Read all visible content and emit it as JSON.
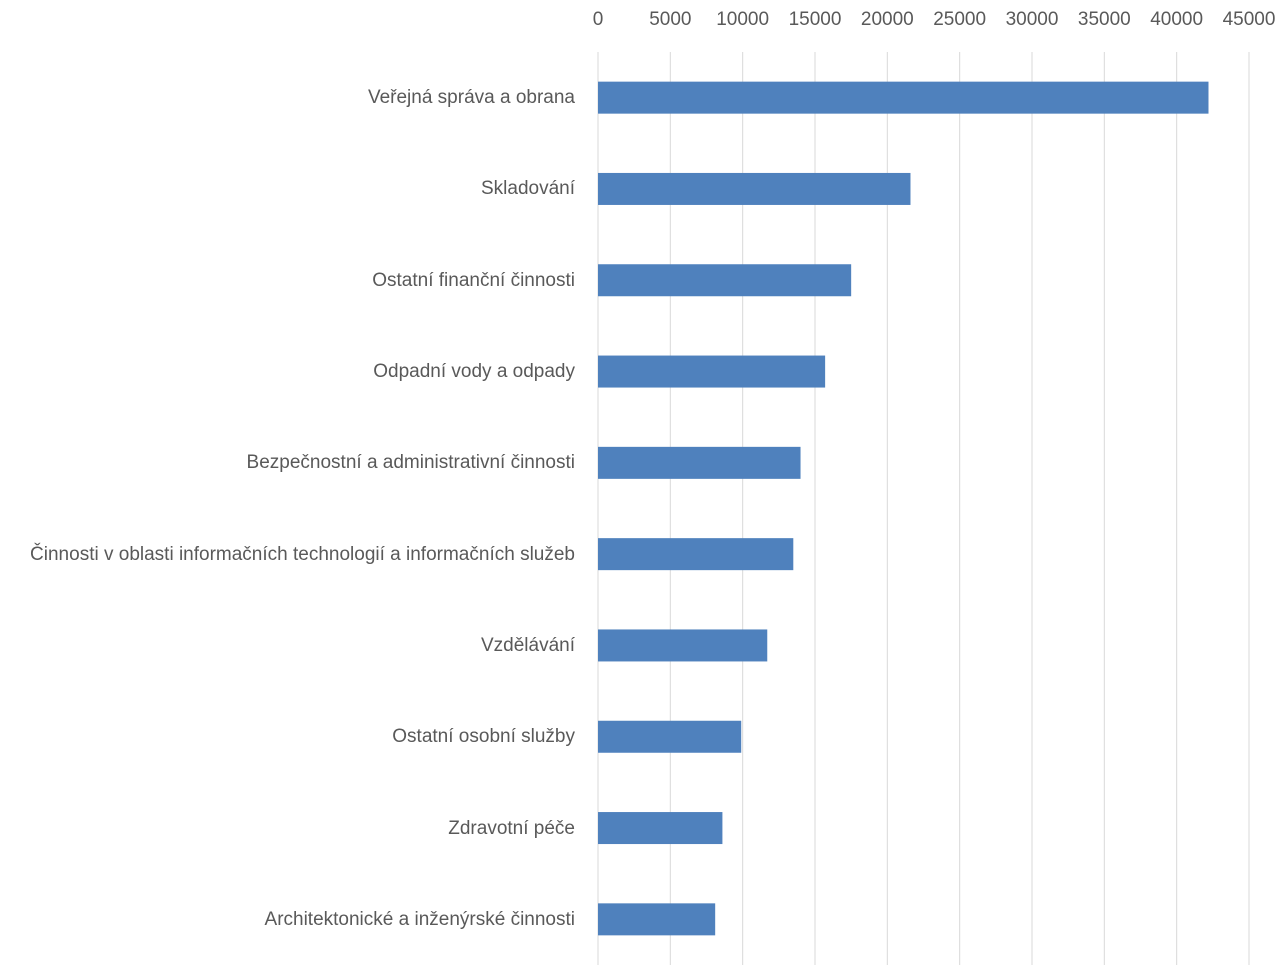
{
  "chart_data": {
    "type": "bar",
    "orientation": "horizontal",
    "categories": [
      "Veřejná správa a obrana",
      "Skladování",
      "Ostatní finanční činnosti",
      "Odpadní vody a odpady",
      "Bezpečnostní a administrativní činnosti",
      "Činnosti v oblasti informačních technologií a informačních služeb",
      "Vzdělávání",
      "Ostatní osobní služby",
      "Zdravotní péče",
      "Architektonické a inženýrské činnosti"
    ],
    "values": [
      42200,
      21600,
      17500,
      15700,
      14000,
      13500,
      11700,
      9900,
      8600,
      8100
    ],
    "color": "#4f81bd",
    "xlim": [
      0,
      45000
    ],
    "xticks": [
      0,
      5000,
      10000,
      15000,
      20000,
      25000,
      30000,
      35000,
      40000,
      45000
    ],
    "grid": true
  }
}
